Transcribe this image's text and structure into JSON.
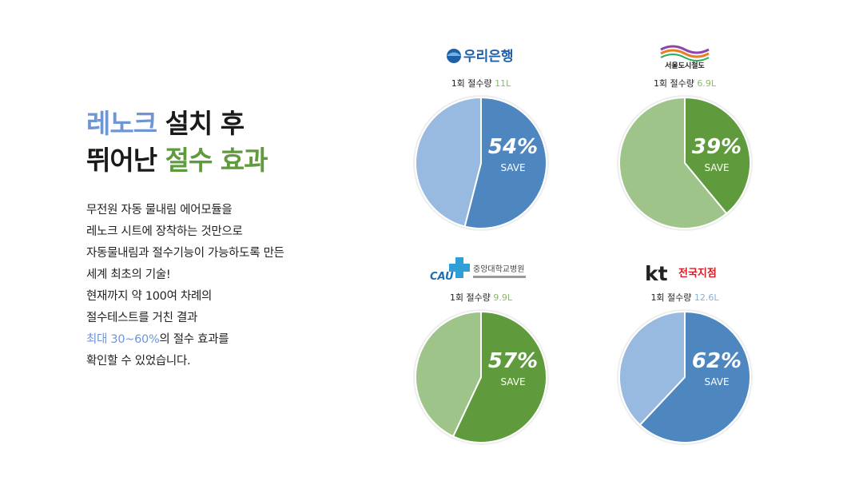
{
  "headline": {
    "line1_blue": "레노크",
    "line1_dark": " 설치 후",
    "line2_dark": "뛰어난 ",
    "line2_green": "절수 효과"
  },
  "body": {
    "lines": [
      "무전원 자동 물내림 에어모듈을",
      "레노크 시트에 장착하는 것만으로",
      "자동물내림과 절수기능이 가능하도록 만든",
      "세계 최초의 기술!",
      "현재까지 약 100여 차례의",
      "절수테스트를 거친 결과"
    ],
    "highlight_line_hl": "최대 30~60%",
    "highlight_line_rest": "의 절수 효과를",
    "last_line": "확인할 수 있었습니다."
  },
  "panels": [
    {
      "logo_text": "우리은행",
      "caption_prefix": "1회 절수량 ",
      "amount": "11L",
      "amount_color": "green"
    },
    {
      "logo_text": "5678",
      "logo_sub": "서울도시철도",
      "caption_prefix": "1회 절수량 ",
      "amount": "6.9L",
      "amount_color": "green"
    },
    {
      "logo_text": "CAU",
      "logo_sub": "중앙대학교병원",
      "caption_prefix": "1회 절수량 ",
      "amount": "9.9L",
      "amount_color": "green"
    },
    {
      "logo_text": "kt",
      "logo_sub": "전국지점",
      "caption_prefix": "1회 절수량 ",
      "amount": "12.6L",
      "amount_color": "blue"
    }
  ],
  "chart_data": [
    {
      "type": "pie",
      "title": "",
      "slices": [
        {
          "label": "SAVE",
          "value": 54,
          "color": "#4e86c0"
        },
        {
          "label": "",
          "value": 46,
          "color": "#98b9e0"
        }
      ],
      "data_label": "54%",
      "sub_label": "SAVE"
    },
    {
      "type": "pie",
      "title": "",
      "slices": [
        {
          "label": "SAVE",
          "value": 39,
          "color": "#5f9b3c"
        },
        {
          "label": "",
          "value": 61,
          "color": "#9fc48a"
        }
      ],
      "data_label": "39%",
      "sub_label": "SAVE"
    },
    {
      "type": "pie",
      "title": "",
      "slices": [
        {
          "label": "SAVE",
          "value": 57,
          "color": "#5f9b3c"
        },
        {
          "label": "",
          "value": 43,
          "color": "#9fc48a"
        }
      ],
      "data_label": "57%",
      "sub_label": "SAVE"
    },
    {
      "type": "pie",
      "title": "",
      "slices": [
        {
          "label": "SAVE",
          "value": 62,
          "color": "#4e86c0"
        },
        {
          "label": "",
          "value": 38,
          "color": "#98b9e0"
        }
      ],
      "data_label": "62%",
      "sub_label": "SAVE"
    }
  ]
}
